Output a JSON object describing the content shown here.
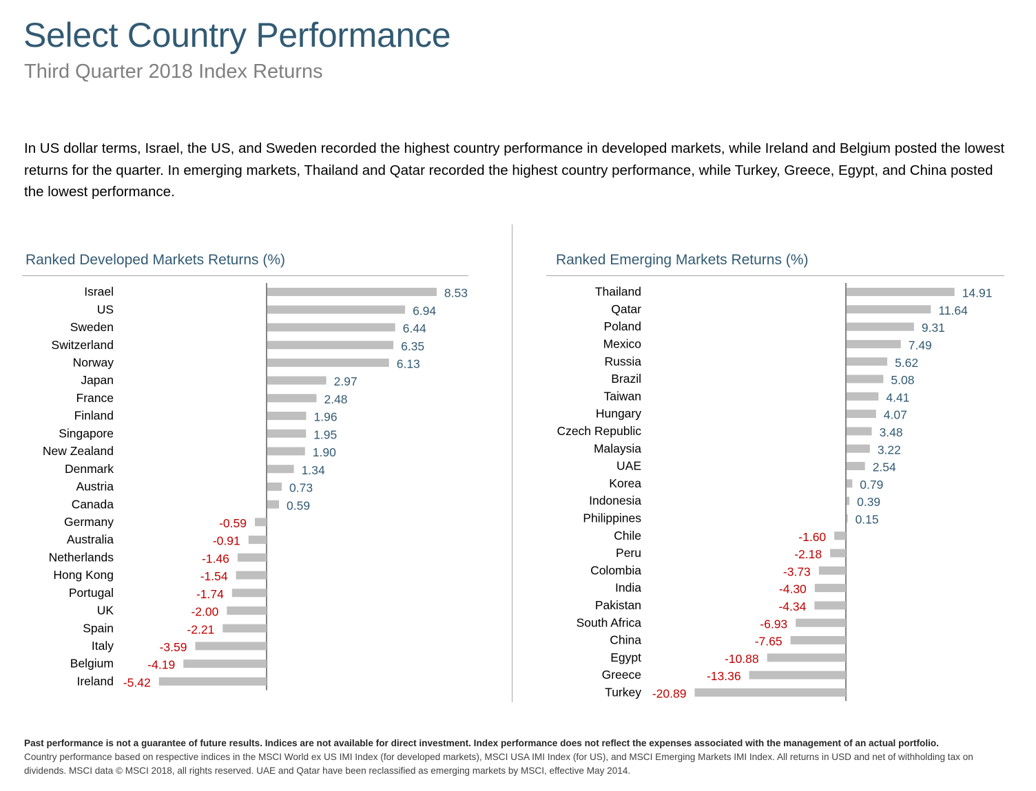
{
  "header": {
    "title": "Select Country Performance",
    "subtitle": "Third Quarter 2018 Index Returns"
  },
  "intro": "In US dollar terms, Israel, the US, and Sweden recorded the highest country performance in developed markets, while Ireland and Belgium posted the lowest returns for the quarter. In emerging markets, Thailand and Qatar recorded the highest country performance, while Turkey, Greece, Egypt, and China posted the lowest performance.",
  "colors": {
    "title": "#325a73",
    "bar": "#bfbfbf",
    "positive_label": "#325a73",
    "negative_label": "#c00000",
    "axis": "#404040"
  },
  "chart_data": [
    {
      "type": "bar",
      "orientation": "horizontal",
      "title": "Ranked Developed Markets Returns (%)",
      "categories": [
        "Israel",
        "US",
        "Sweden",
        "Switzerland",
        "Norway",
        "Japan",
        "France",
        "Finland",
        "Singapore",
        "New Zealand",
        "Denmark",
        "Austria",
        "Canada",
        "Germany",
        "Australia",
        "Netherlands",
        "Hong Kong",
        "Portugal",
        "UK",
        "Spain",
        "Italy",
        "Belgium",
        "Ireland"
      ],
      "values": [
        8.53,
        6.94,
        6.44,
        6.35,
        6.13,
        2.97,
        2.48,
        1.96,
        1.95,
        1.9,
        1.34,
        0.73,
        0.59,
        -0.59,
        -0.91,
        -1.46,
        -1.54,
        -1.74,
        -2.0,
        -2.21,
        -3.59,
        -4.19,
        -5.42
      ],
      "value_labels": [
        "8.53",
        "6.94",
        "6.44",
        "6.35",
        "6.13",
        "2.97",
        "2.48",
        "1.96",
        "1.95",
        "1.90",
        "1.34",
        "0.73",
        "0.59",
        "-0.59",
        "-0.91",
        "-1.46",
        "-1.54",
        "-1.74",
        "-2.00",
        "-2.21",
        "-3.59",
        "-4.19",
        "-5.42"
      ],
      "xlabel": "",
      "ylabel": "",
      "grid": false
    },
    {
      "type": "bar",
      "orientation": "horizontal",
      "title": "Ranked Emerging Markets Returns (%)",
      "categories": [
        "Thailand",
        "Qatar",
        "Poland",
        "Mexico",
        "Russia",
        "Brazil",
        "Taiwan",
        "Hungary",
        "Czech Republic",
        "Malaysia",
        "UAE",
        "Korea",
        "Indonesia",
        "Philippines",
        "Chile",
        "Peru",
        "Colombia",
        "India",
        "Pakistan",
        "South Africa",
        "China",
        "Egypt",
        "Greece",
        "Turkey"
      ],
      "values": [
        14.91,
        11.64,
        9.31,
        7.49,
        5.62,
        5.08,
        4.41,
        4.07,
        3.48,
        3.22,
        2.54,
        0.79,
        0.39,
        0.15,
        -1.6,
        -2.18,
        -3.73,
        -4.3,
        -4.34,
        -6.93,
        -7.65,
        -10.88,
        -13.36,
        -20.89
      ],
      "value_labels": [
        "14.91",
        "11.64",
        "9.31",
        "7.49",
        "5.62",
        "5.08",
        "4.41",
        "4.07",
        "3.48",
        "3.22",
        "2.54",
        "0.79",
        "0.39",
        "0.15",
        "-1.60",
        "-2.18",
        "-3.73",
        "-4.30",
        "-4.34",
        "-6.93",
        "-7.65",
        "-10.88",
        "-13.36",
        "-20.89"
      ],
      "xlabel": "",
      "ylabel": "",
      "grid": false
    }
  ],
  "footer": {
    "disclaimer": "Past performance is not a guarantee of future results. Indices are not available for direct investment. Index performance does not reflect the expenses associated with the management of an actual portfolio.",
    "notes": "Country performance based on respective indices in the MSCI World ex US IMI Index (for developed markets), MSCI USA IMI Index (for US), and MSCI Emerging Markets IMI Index. All returns in USD and net of withholding tax on dividends. MSCI data © MSCI 2018, all rights reserved. UAE and Qatar have been reclassified as emerging markets by MSCI, effective May 2014."
  }
}
